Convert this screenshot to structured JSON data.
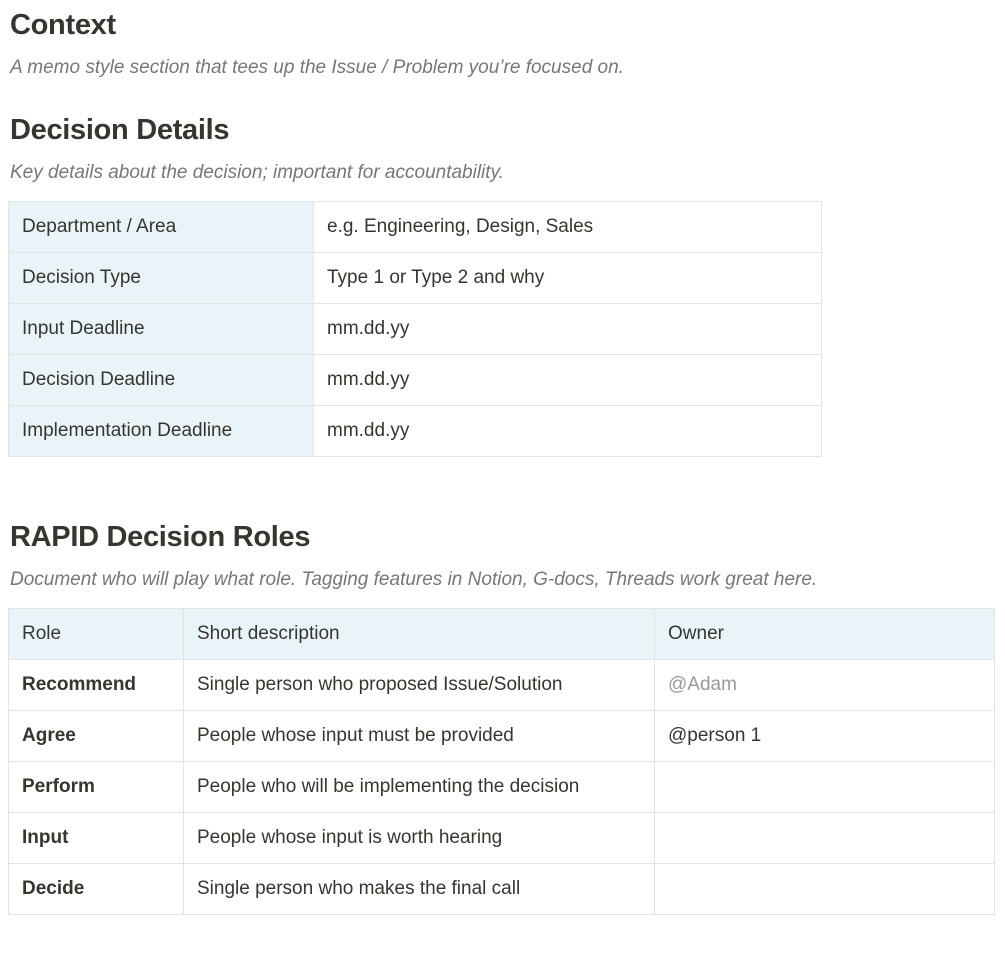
{
  "context": {
    "title": "Context",
    "subtitle": "A memo style section that tees up the Issue / Problem you’re focused on."
  },
  "details": {
    "title": "Decision Details",
    "subtitle": "Key details about the decision; important for accountability.",
    "rows": [
      {
        "label": "Department / Area",
        "value": "e.g. Engineering, Design, Sales"
      },
      {
        "label": "Decision Type",
        "value": "Type 1 or Type 2 and why"
      },
      {
        "label": "Input Deadline",
        "value": "mm.dd.yy"
      },
      {
        "label": "Decision Deadline",
        "value": "mm.dd.yy"
      },
      {
        "label": "Implementation Deadline",
        "value": "mm.dd.yy"
      }
    ]
  },
  "roles": {
    "title": "RAPID Decision Roles",
    "subtitle": "Document who will play what role. Tagging features in Notion, G-docs, Threads work great here.",
    "headers": [
      "Role",
      "Short description",
      "Owner"
    ],
    "rows": [
      {
        "role": "Recommend",
        "desc": "Single person who proposed Issue/Solution",
        "owner": "@Adam"
      },
      {
        "role": "Agree",
        "desc": "People whose input must be provided",
        "owner": "@person 1"
      },
      {
        "role": "Perform",
        "desc": "People who will be implementing the decision",
        "owner": ""
      },
      {
        "role": "Input",
        "desc": "People whose input is worth hearing",
        "owner": ""
      },
      {
        "role": "Decide",
        "desc": "Single person who makes the final call",
        "owner": ""
      }
    ]
  }
}
